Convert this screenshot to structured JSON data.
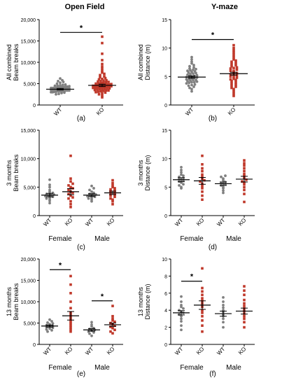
{
  "columns": [
    "Open Field",
    "Y-maze"
  ],
  "colors": {
    "WT": "#808080",
    "KO": "#c0392b",
    "KO_light": "#f2b8bc"
  },
  "chart_data": [
    {
      "id": "a",
      "type": "scatter",
      "panel_label": "(a)",
      "ylabel": [
        "All combined",
        "Beam breaks"
      ],
      "ylim": [
        0,
        20000
      ],
      "yticks": [
        "0",
        "5,000",
        "10,000",
        "15,000",
        "20,000"
      ],
      "groups": [
        {
          "label": "WT",
          "series": "WT",
          "mean": 3700,
          "sem": 180,
          "values": [
            2500,
            2600,
            2800,
            2900,
            3000,
            3000,
            3100,
            3100,
            3200,
            3200,
            3300,
            3300,
            3300,
            3400,
            3400,
            3400,
            3500,
            3500,
            3500,
            3600,
            3600,
            3600,
            3700,
            3700,
            3700,
            3700,
            3800,
            3800,
            3800,
            3800,
            3900,
            3900,
            3900,
            4000,
            4000,
            4000,
            4100,
            4100,
            4200,
            4200,
            4300,
            4300,
            4400,
            4500,
            4500,
            4600,
            4700,
            4800,
            5000,
            5200,
            5400,
            5600,
            5800,
            6200
          ]
        },
        {
          "label": "KO",
          "series": "KO",
          "mean": 4600,
          "sem": 280,
          "values": [
            1800,
            2200,
            2500,
            2700,
            2900,
            3000,
            3100,
            3200,
            3300,
            3400,
            3400,
            3500,
            3600,
            3700,
            3700,
            3800,
            3900,
            3900,
            4000,
            4000,
            4100,
            4200,
            4200,
            4300,
            4300,
            4400,
            4400,
            4500,
            4500,
            4600,
            4600,
            4700,
            4700,
            4800,
            4800,
            4900,
            5000,
            5000,
            5100,
            5200,
            5300,
            5400,
            5500,
            5600,
            5700,
            5800,
            6000,
            6100,
            6300,
            6500,
            6700,
            7000,
            7300,
            7600,
            8000,
            8500,
            9000,
            9600,
            10500,
            12000,
            14500,
            16000
          ]
        }
      ],
      "xlabels": [],
      "sig": [
        {
          "from": 0,
          "to": 1,
          "y": 17000,
          "label": "*"
        }
      ]
    },
    {
      "id": "b",
      "type": "scatter",
      "panel_label": "(b)",
      "ylabel": [
        "All combined",
        "Distance (m)"
      ],
      "ylim": [
        0,
        15
      ],
      "yticks": [
        "0",
        "5",
        "10",
        "15"
      ],
      "groups": [
        {
          "label": "WT",
          "series": "WT",
          "mean": 4.9,
          "sem": 0.2,
          "values": [
            2.4,
            2.8,
            3.0,
            3.2,
            3.4,
            3.5,
            3.6,
            3.8,
            3.9,
            4.0,
            4.0,
            4.1,
            4.2,
            4.3,
            4.4,
            4.4,
            4.5,
            4.6,
            4.7,
            4.8,
            4.8,
            4.9,
            5.0,
            5.0,
            5.1,
            5.2,
            5.3,
            5.4,
            5.5,
            5.6,
            5.7,
            5.8,
            5.9,
            6.0,
            6.1,
            6.2,
            6.3,
            6.4,
            6.6,
            6.8,
            7.0,
            7.3,
            7.6,
            8.0,
            8.4
          ]
        },
        {
          "label": "KO",
          "series": "KO",
          "mean": 5.5,
          "sem": 0.25,
          "values": [
            1.6,
            2.0,
            2.4,
            2.8,
            3.0,
            3.2,
            3.4,
            3.6,
            3.8,
            4.0,
            4.2,
            4.4,
            4.5,
            4.6,
            4.8,
            5.0,
            5.0,
            5.2,
            5.4,
            5.5,
            5.6,
            5.8,
            6.0,
            6.0,
            6.2,
            6.4,
            6.5,
            6.6,
            6.8,
            7.0,
            7.2,
            7.4,
            7.6,
            7.8,
            8.0,
            8.4,
            8.8,
            9.2,
            9.6,
            10.0,
            10.5
          ]
        }
      ],
      "xlabels": [],
      "sig": [
        {
          "from": 0,
          "to": 1,
          "y": 11.5,
          "label": "*"
        }
      ]
    },
    {
      "id": "c",
      "type": "scatter",
      "panel_label": "(c)",
      "ylabel": [
        "3 months",
        "Beam breaks"
      ],
      "ylim": [
        0,
        15000
      ],
      "yticks": [
        "0",
        "5,000",
        "10,000",
        "15,000"
      ],
      "groups": [
        {
          "label": "WT",
          "series": "WT",
          "mean": 3600,
          "sem": 300,
          "values": [
            2200,
            2600,
            2900,
            3000,
            3200,
            3300,
            3400,
            3500,
            3600,
            3700,
            3800,
            3900,
            4000,
            4200,
            4500,
            5000,
            5400,
            6300
          ]
        },
        {
          "label": "KO",
          "series": "KO",
          "mean": 4200,
          "sem": 550,
          "values": [
            1500,
            2000,
            2500,
            3000,
            3200,
            3500,
            3800,
            4000,
            4200,
            4500,
            4800,
            5000,
            5300,
            5600,
            6000,
            6500,
            10500
          ]
        },
        {
          "label": "WT",
          "series": "WT",
          "mean": 3600,
          "sem": 250,
          "values": [
            2500,
            2800,
            3000,
            3100,
            3300,
            3400,
            3500,
            3600,
            3700,
            3800,
            4000,
            4200,
            4500,
            4800,
            5200
          ]
        },
        {
          "label": "KO",
          "series": "KO",
          "mean": 4000,
          "sem": 300,
          "values": [
            2000,
            2500,
            2800,
            3000,
            3300,
            3500,
            3700,
            3900,
            4000,
            4200,
            4400,
            4600,
            4800,
            5000,
            5300,
            5700,
            6200
          ]
        }
      ],
      "xlabels": [
        "Female",
        "Male"
      ],
      "sig": []
    },
    {
      "id": "d",
      "type": "scatter",
      "panel_label": "(d)",
      "ylabel": [
        "3 months",
        "Distance (m)"
      ],
      "ylim": [
        0,
        15
      ],
      "yticks": [
        "0",
        "5",
        "10",
        "15"
      ],
      "groups": [
        {
          "label": "WT",
          "series": "WT",
          "mean": 6.3,
          "sem": 0.35,
          "values": [
            4.8,
            5.0,
            5.3,
            5.5,
            5.8,
            6.0,
            6.2,
            6.4,
            6.6,
            6.8,
            7.0,
            7.2,
            7.6,
            8.0,
            8.5
          ]
        },
        {
          "label": "KO",
          "series": "KO",
          "mean": 6.1,
          "sem": 0.6,
          "values": [
            2.8,
            3.5,
            4.2,
            4.8,
            5.2,
            5.6,
            6.0,
            6.2,
            6.5,
            6.8,
            7.2,
            7.8,
            8.3,
            9.0,
            10.5
          ]
        },
        {
          "label": "WT",
          "series": "WT",
          "mean": 5.6,
          "sem": 0.3,
          "values": [
            4.0,
            4.4,
            4.8,
            5.0,
            5.3,
            5.5,
            5.7,
            5.9,
            6.2,
            6.5,
            6.8,
            7.0
          ]
        },
        {
          "label": "KO",
          "series": "KO",
          "mean": 6.4,
          "sem": 0.5,
          "values": [
            2.4,
            3.8,
            4.5,
            5.0,
            5.5,
            5.8,
            6.0,
            6.3,
            6.6,
            7.0,
            7.3,
            7.8,
            8.3,
            8.8,
            9.2,
            9.7
          ]
        }
      ],
      "xlabels": [
        "Female",
        "Male"
      ],
      "sig": []
    },
    {
      "id": "e",
      "type": "scatter",
      "panel_label": "(e)",
      "ylabel": [
        "13 months",
        "Beam breaks"
      ],
      "ylim": [
        0,
        20000
      ],
      "yticks": [
        "0",
        "5,000",
        "10,000",
        "15,000",
        "20,000"
      ],
      "groups": [
        {
          "label": "WT",
          "series": "WT",
          "mean": 4300,
          "sem": 250,
          "values": [
            3000,
            3300,
            3500,
            3700,
            3900,
            4000,
            4200,
            4300,
            4500,
            4700,
            4900,
            5100,
            5400,
            5800
          ]
        },
        {
          "label": "KO",
          "series": "KO",
          "mean": 6700,
          "sem": 1000,
          "values": [
            3000,
            3500,
            4000,
            4500,
            5000,
            5500,
            6000,
            6500,
            7000,
            7500,
            8500,
            10000,
            12000,
            14000,
            16000
          ]
        },
        {
          "label": "WT",
          "series": "WT",
          "mean": 3400,
          "sem": 300,
          "values": [
            2000,
            2500,
            2800,
            3000,
            3200,
            3400,
            3600,
            3800,
            4200,
            4600,
            5200
          ]
        },
        {
          "label": "KO",
          "series": "KO",
          "mean": 4600,
          "sem": 400,
          "values": [
            2600,
            3000,
            3400,
            3800,
            4100,
            4400,
            4700,
            5000,
            5300,
            5600,
            6000,
            6600,
            9000
          ]
        }
      ],
      "xlabels": [
        "Female",
        "Male"
      ],
      "sig": [
        {
          "from": 0,
          "to": 1,
          "y": 17500,
          "label": "*"
        },
        {
          "from": 2,
          "to": 3,
          "y": 10200,
          "label": "*"
        }
      ]
    },
    {
      "id": "f",
      "type": "scatter",
      "panel_label": "(f)",
      "ylabel": [
        "13 months",
        "Distance (m)"
      ],
      "ylim": [
        0,
        10
      ],
      "yticks": [
        "0",
        "2",
        "4",
        "6",
        "8",
        "10"
      ],
      "groups": [
        {
          "label": "WT",
          "series": "WT",
          "mean": 3.7,
          "sem": 0.25,
          "values": [
            1.7,
            2.2,
            2.7,
            3.0,
            3.3,
            3.5,
            3.7,
            3.8,
            4.0,
            4.2,
            4.4,
            4.6,
            5.0,
            5.6
          ]
        },
        {
          "label": "KO",
          "series": "KO",
          "mean": 4.6,
          "sem": 0.5,
          "values": [
            1.5,
            2.2,
            2.8,
            3.3,
            3.7,
            4.0,
            4.4,
            4.8,
            5.1,
            5.4,
            5.8,
            6.2,
            6.6,
            8.9
          ]
        },
        {
          "label": "WT",
          "series": "WT",
          "mean": 3.6,
          "sem": 0.3,
          "values": [
            2.0,
            2.6,
            3.0,
            3.3,
            3.5,
            3.8,
            4.0,
            4.3,
            4.6,
            5.0,
            5.5
          ]
        },
        {
          "label": "KO",
          "series": "KO",
          "mean": 3.9,
          "sem": 0.35,
          "values": [
            2.0,
            2.6,
            3.0,
            3.3,
            3.6,
            3.9,
            4.2,
            4.5,
            4.8,
            5.2,
            5.8,
            6.3,
            6.8
          ]
        }
      ],
      "xlabels": [
        "Female",
        "Male"
      ],
      "sig": [
        {
          "from": 0,
          "to": 1,
          "y": 7.4,
          "label": "*"
        }
      ]
    }
  ]
}
